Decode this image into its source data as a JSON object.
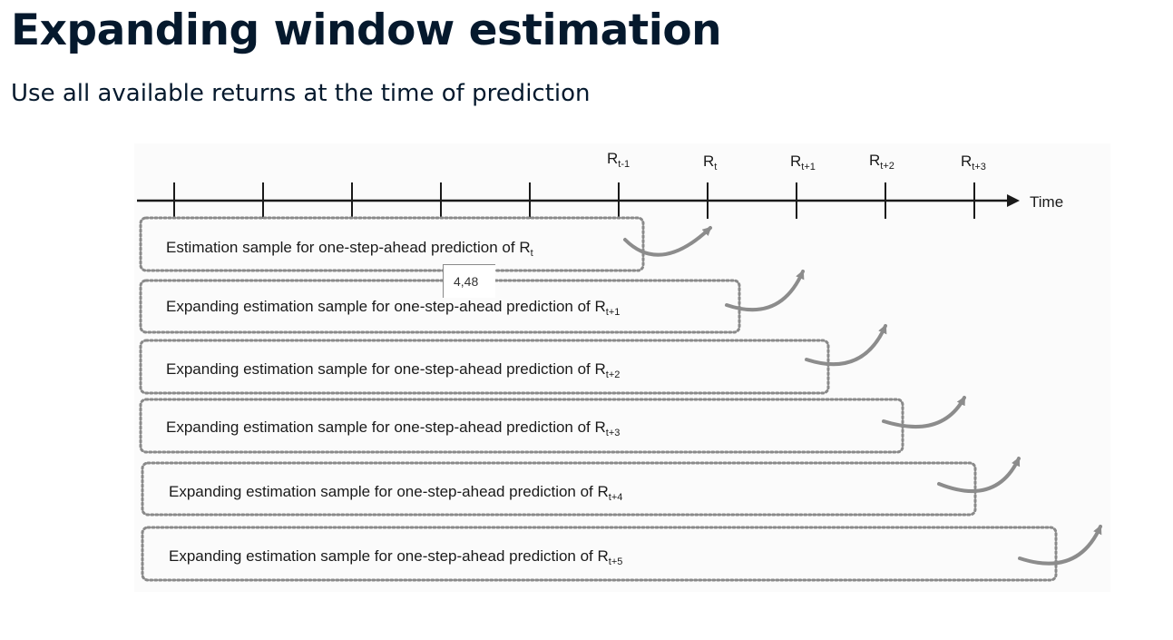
{
  "header": {
    "title": "Expanding window estimation",
    "subtitle": "Use all available returns at the time of prediction"
  },
  "diagram": {
    "axis": {
      "label": "Time",
      "tick_labels": [
        {
          "base": "R",
          "sub": "t-1"
        },
        {
          "base": "R",
          "sub": "t"
        },
        {
          "base": "R",
          "sub": "t+1"
        },
        {
          "base": "R",
          "sub": "t+2"
        },
        {
          "base": "R",
          "sub": "t+3"
        }
      ]
    },
    "samples": [
      {
        "text": "Estimation sample for one-step-ahead prediction of R",
        "sub": "t"
      },
      {
        "text": "Expanding estimation sample for one-step-ahead prediction of R",
        "sub": "t+1"
      },
      {
        "text": "Expanding estimation sample for one-step-ahead prediction of R",
        "sub": "t+2"
      },
      {
        "text": "Expanding estimation sample for one-step-ahead prediction of R",
        "sub": "t+3"
      },
      {
        "text": "Expanding estimation sample for one-step-ahead prediction of R",
        "sub": "t+4"
      },
      {
        "text": "Expanding estimation sample for one-step-ahead prediction of R",
        "sub": "t+5"
      }
    ]
  },
  "tooltip": {
    "text": "4,48"
  },
  "colors": {
    "title": "#05192d",
    "axis": "#1a1a1a",
    "dotted_border": "#8a8a8a",
    "arrow": "#8c8c8c"
  }
}
